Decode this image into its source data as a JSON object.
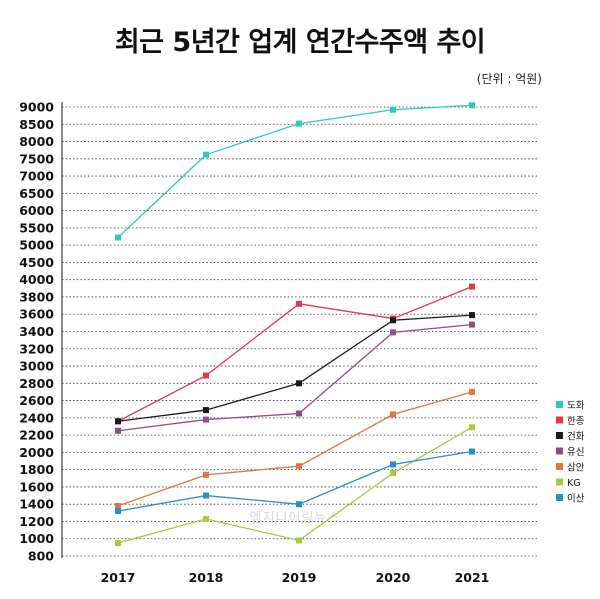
{
  "chart_data": {
    "type": "line",
    "title": "최근 5년간 업계 연간수주액 추이",
    "unit_label": "(단위 : 억원)",
    "watermark": "엠지니어링뉴스",
    "categories": [
      "2017",
      "2018",
      "2019",
      "2020",
      "2021"
    ],
    "y_ticks": [
      800,
      1000,
      1200,
      1400,
      1600,
      1800,
      2000,
      2200,
      2400,
      2600,
      2800,
      3000,
      3200,
      3400,
      3600,
      3800,
      4000,
      4500,
      5000,
      5500,
      6000,
      6500,
      7000,
      7500,
      8000,
      8500,
      9000
    ],
    "grid": "horizontal-dotted",
    "legend_position": "right",
    "series": [
      {
        "name": "도화",
        "color": "#2ecbb5",
        "values": [
          5220,
          7620,
          8520,
          8920,
          9050
        ]
      },
      {
        "name": "한종",
        "color": "#e0394f",
        "values": [
          2360,
          2890,
          3720,
          3550,
          3920
        ]
      },
      {
        "name": "건화",
        "color": "#1a1a1a",
        "values": [
          2360,
          2490,
          2800,
          3530,
          3590
        ]
      },
      {
        "name": "유신",
        "color": "#8e4e82",
        "values": [
          2250,
          2380,
          2450,
          3390,
          3480
        ]
      },
      {
        "name": "삼안",
        "color": "#e07442",
        "values": [
          1380,
          1740,
          1840,
          2440,
          2700
        ]
      },
      {
        "name": "KG",
        "color": "#a8c93b",
        "values": [
          950,
          1230,
          980,
          1760,
          2290
        ]
      },
      {
        "name": "이산",
        "color": "#2a8fc8",
        "values": [
          1320,
          1500,
          1400,
          1860,
          2010
        ]
      }
    ]
  }
}
